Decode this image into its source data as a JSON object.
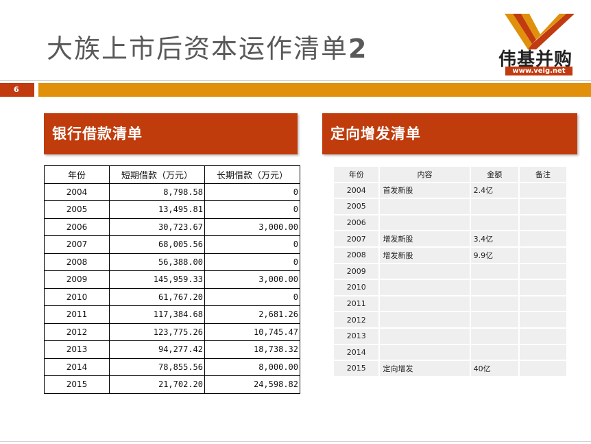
{
  "page": {
    "title": "大族上市后资本运作清单",
    "title_number": "2",
    "page_number": "6",
    "logo_text": "伟基并购",
    "logo_url": "www.veig.net"
  },
  "colors": {
    "accent_red": "#c03c0c",
    "accent_orange": "#e0900a"
  },
  "bank_loans": {
    "header": "银行借款清单",
    "columns": [
      "年份",
      "短期借款（万元）",
      "长期借款（万元）"
    ],
    "rows": [
      [
        "2004",
        "8,798.58",
        "0"
      ],
      [
        "2005",
        "13,495.81",
        "0"
      ],
      [
        "2006",
        "30,723.67",
        "3,000.00"
      ],
      [
        "2007",
        "68,005.56",
        "0"
      ],
      [
        "2008",
        "56,388.00",
        "0"
      ],
      [
        "2009",
        "145,959.33",
        "3,000.00"
      ],
      [
        "2010",
        "61,767.20",
        "0"
      ],
      [
        "2011",
        "117,384.68",
        "2,681.26"
      ],
      [
        "2012",
        "123,775.26",
        "10,745.47"
      ],
      [
        "2013",
        "94,277.42",
        "18,738.32"
      ],
      [
        "2014",
        "78,855.56",
        "8,000.00"
      ],
      [
        "2015",
        "21,702.20",
        "24,598.82"
      ]
    ]
  },
  "private_placement": {
    "header": "定向增发清单",
    "columns": [
      "年份",
      "内容",
      "金额",
      "备注"
    ],
    "rows": [
      [
        "2004",
        "首发新股",
        "2.4亿",
        ""
      ],
      [
        "2005",
        "",
        "",
        ""
      ],
      [
        "2006",
        "",
        "",
        ""
      ],
      [
        "2007",
        "增发新股",
        "3.4亿",
        ""
      ],
      [
        "2008",
        "增发新股",
        "9.9亿",
        ""
      ],
      [
        "2009",
        "",
        "",
        ""
      ],
      [
        "2010",
        "",
        "",
        ""
      ],
      [
        "2011",
        "",
        "",
        ""
      ],
      [
        "2012",
        "",
        "",
        ""
      ],
      [
        "2013",
        "",
        "",
        ""
      ],
      [
        "2014",
        "",
        "",
        ""
      ],
      [
        "2015",
        "定向增发",
        "40亿",
        ""
      ]
    ]
  }
}
